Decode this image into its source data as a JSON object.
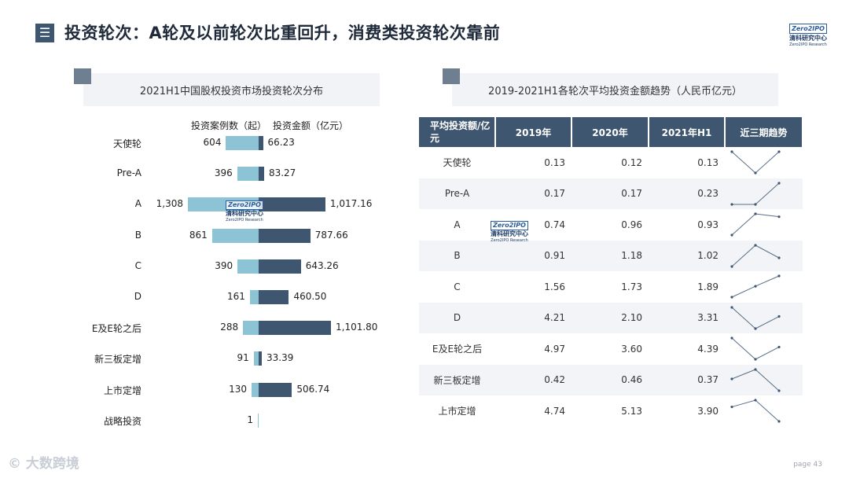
{
  "header": {
    "menu_icon": "menu-icon",
    "title": "投资轮次：A轮及以前轮次比重回升，消费类投资轮次靠前",
    "brand_mark": "Zero2IPO",
    "brand_cn": "清科研究中心",
    "brand_en": "Zero2IPO Research"
  },
  "left_panel": {
    "title": "2021H1中国股权投资市场投资轮次分布",
    "col_left": "投资案例数（起）",
    "col_right": "投资金额（亿元）"
  },
  "right_panel": {
    "title": "2019-2021H1各轮次平均投资金额趋势（人民币亿元）"
  },
  "colors": {
    "cases": "#8cc3d5",
    "amount": "#3f5670",
    "header": "#3f5670"
  },
  "chart_data": [
    {
      "type": "bar",
      "title": "2021H1中国股权投资市场投资轮次分布",
      "categories": [
        "天使轮",
        "Pre-A",
        "A",
        "B",
        "C",
        "D",
        "E及E轮之后",
        "新三板定增",
        "上市定增",
        "战略投资"
      ],
      "series": [
        {
          "name": "投资案例数（起）",
          "values": [
            604,
            396,
            1308,
            861,
            390,
            161,
            288,
            91,
            130,
            1
          ],
          "labels": [
            "604",
            "396",
            "1,308",
            "861",
            "390",
            "161",
            "288",
            "91",
            "130",
            "1"
          ]
        },
        {
          "name": "投资金额（亿元）",
          "values": [
            66.23,
            83.27,
            1017.16,
            787.66,
            643.26,
            460.5,
            1101.8,
            33.39,
            506.74,
            0
          ],
          "labels": [
            "66.23",
            "83.27",
            "1,017.16",
            "787.66",
            "643.26",
            "460.50",
            "1,101.80",
            "33.39",
            "506.74",
            ""
          ]
        }
      ]
    },
    {
      "type": "table",
      "title": "2019-2021H1各轮次平均投资金额趋势（人民币亿元）",
      "columns": [
        "平均投资额/亿元",
        "2019年",
        "2020年",
        "2021年H1",
        "近三期趋势"
      ],
      "rows": [
        {
          "label": "天使轮",
          "values": [
            "0.13",
            "0.12",
            "0.13"
          ]
        },
        {
          "label": "Pre-A",
          "values": [
            "0.17",
            "0.17",
            "0.23"
          ]
        },
        {
          "label": "A",
          "values": [
            "0.74",
            "0.96",
            "0.93"
          ]
        },
        {
          "label": "B",
          "values": [
            "0.91",
            "1.18",
            "1.02"
          ]
        },
        {
          "label": "C",
          "values": [
            "1.56",
            "1.73",
            "1.89"
          ]
        },
        {
          "label": "D",
          "values": [
            "4.21",
            "2.10",
            "3.31"
          ]
        },
        {
          "label": "E及E轮之后",
          "values": [
            "4.97",
            "3.60",
            "4.39"
          ]
        },
        {
          "label": "新三板定增",
          "values": [
            "0.42",
            "0.46",
            "0.37"
          ]
        },
        {
          "label": "上市定增",
          "values": [
            "4.74",
            "5.13",
            "3.90"
          ]
        }
      ]
    }
  ],
  "footer": {
    "logo": "大数跨境",
    "logo_icon": "kr-logo-icon",
    "page": "page 43"
  }
}
